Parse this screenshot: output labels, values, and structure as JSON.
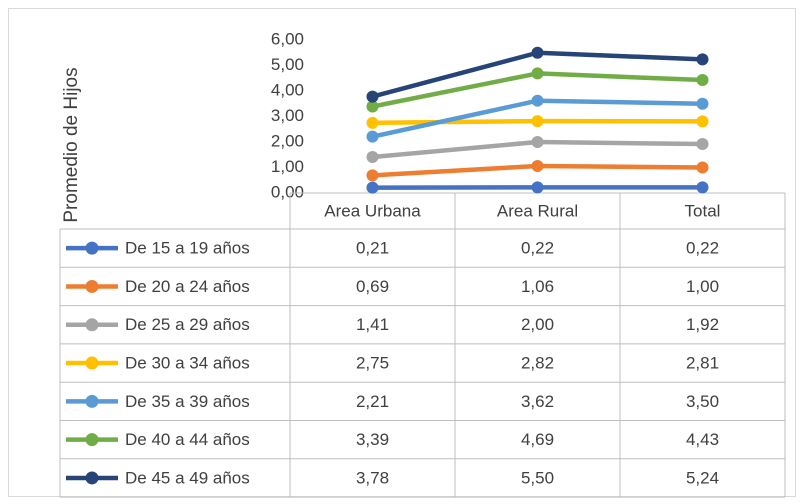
{
  "chart_data": {
    "type": "line",
    "y_axis_label": "Promedio de Hijos",
    "categories": [
      "Area Urbana",
      "Area Rural",
      "Total"
    ],
    "ylim": [
      0,
      6
    ],
    "yticks": [
      {
        "value": 0,
        "label": "0,00"
      },
      {
        "value": 1,
        "label": "1,00"
      },
      {
        "value": 2,
        "label": "2,00"
      },
      {
        "value": 3,
        "label": "3,00"
      },
      {
        "value": 4,
        "label": "4,00"
      },
      {
        "value": 5,
        "label": "5,00"
      },
      {
        "value": 6,
        "label": "6,00"
      }
    ],
    "grid": false,
    "series": [
      {
        "name": "De 15 a 19 años",
        "color": "#4472c4",
        "values": [
          0.21,
          0.22,
          0.22
        ],
        "value_labels": [
          "0,21",
          "0,22",
          "0,22"
        ]
      },
      {
        "name": "De 20 a 24 años",
        "color": "#ed7d31",
        "values": [
          0.69,
          1.06,
          1.0
        ],
        "value_labels": [
          "0,69",
          "1,06",
          "1,00"
        ]
      },
      {
        "name": "De 25 a 29 años",
        "color": "#a5a5a5",
        "values": [
          1.41,
          2.0,
          1.92
        ],
        "value_labels": [
          "1,41",
          "2,00",
          "1,92"
        ]
      },
      {
        "name": "De 30 a 34 años",
        "color": "#ffc000",
        "values": [
          2.75,
          2.82,
          2.81
        ],
        "value_labels": [
          "2,75",
          "2,82",
          "2,81"
        ]
      },
      {
        "name": "De 35 a 39 años",
        "color": "#5b9bd5",
        "values": [
          2.21,
          3.62,
          3.5
        ],
        "value_labels": [
          "2,21",
          "3,62",
          "3,50"
        ]
      },
      {
        "name": "De 40 a 44 años",
        "color": "#70ad47",
        "values": [
          3.39,
          4.69,
          4.43
        ],
        "value_labels": [
          "3,39",
          "4,69",
          "4,43"
        ]
      },
      {
        "name": "De 45 a 49 años",
        "color": "#264478",
        "values": [
          3.78,
          5.5,
          5.24
        ],
        "value_labels": [
          "3,78",
          "5,50",
          "5,24"
        ]
      }
    ]
  }
}
